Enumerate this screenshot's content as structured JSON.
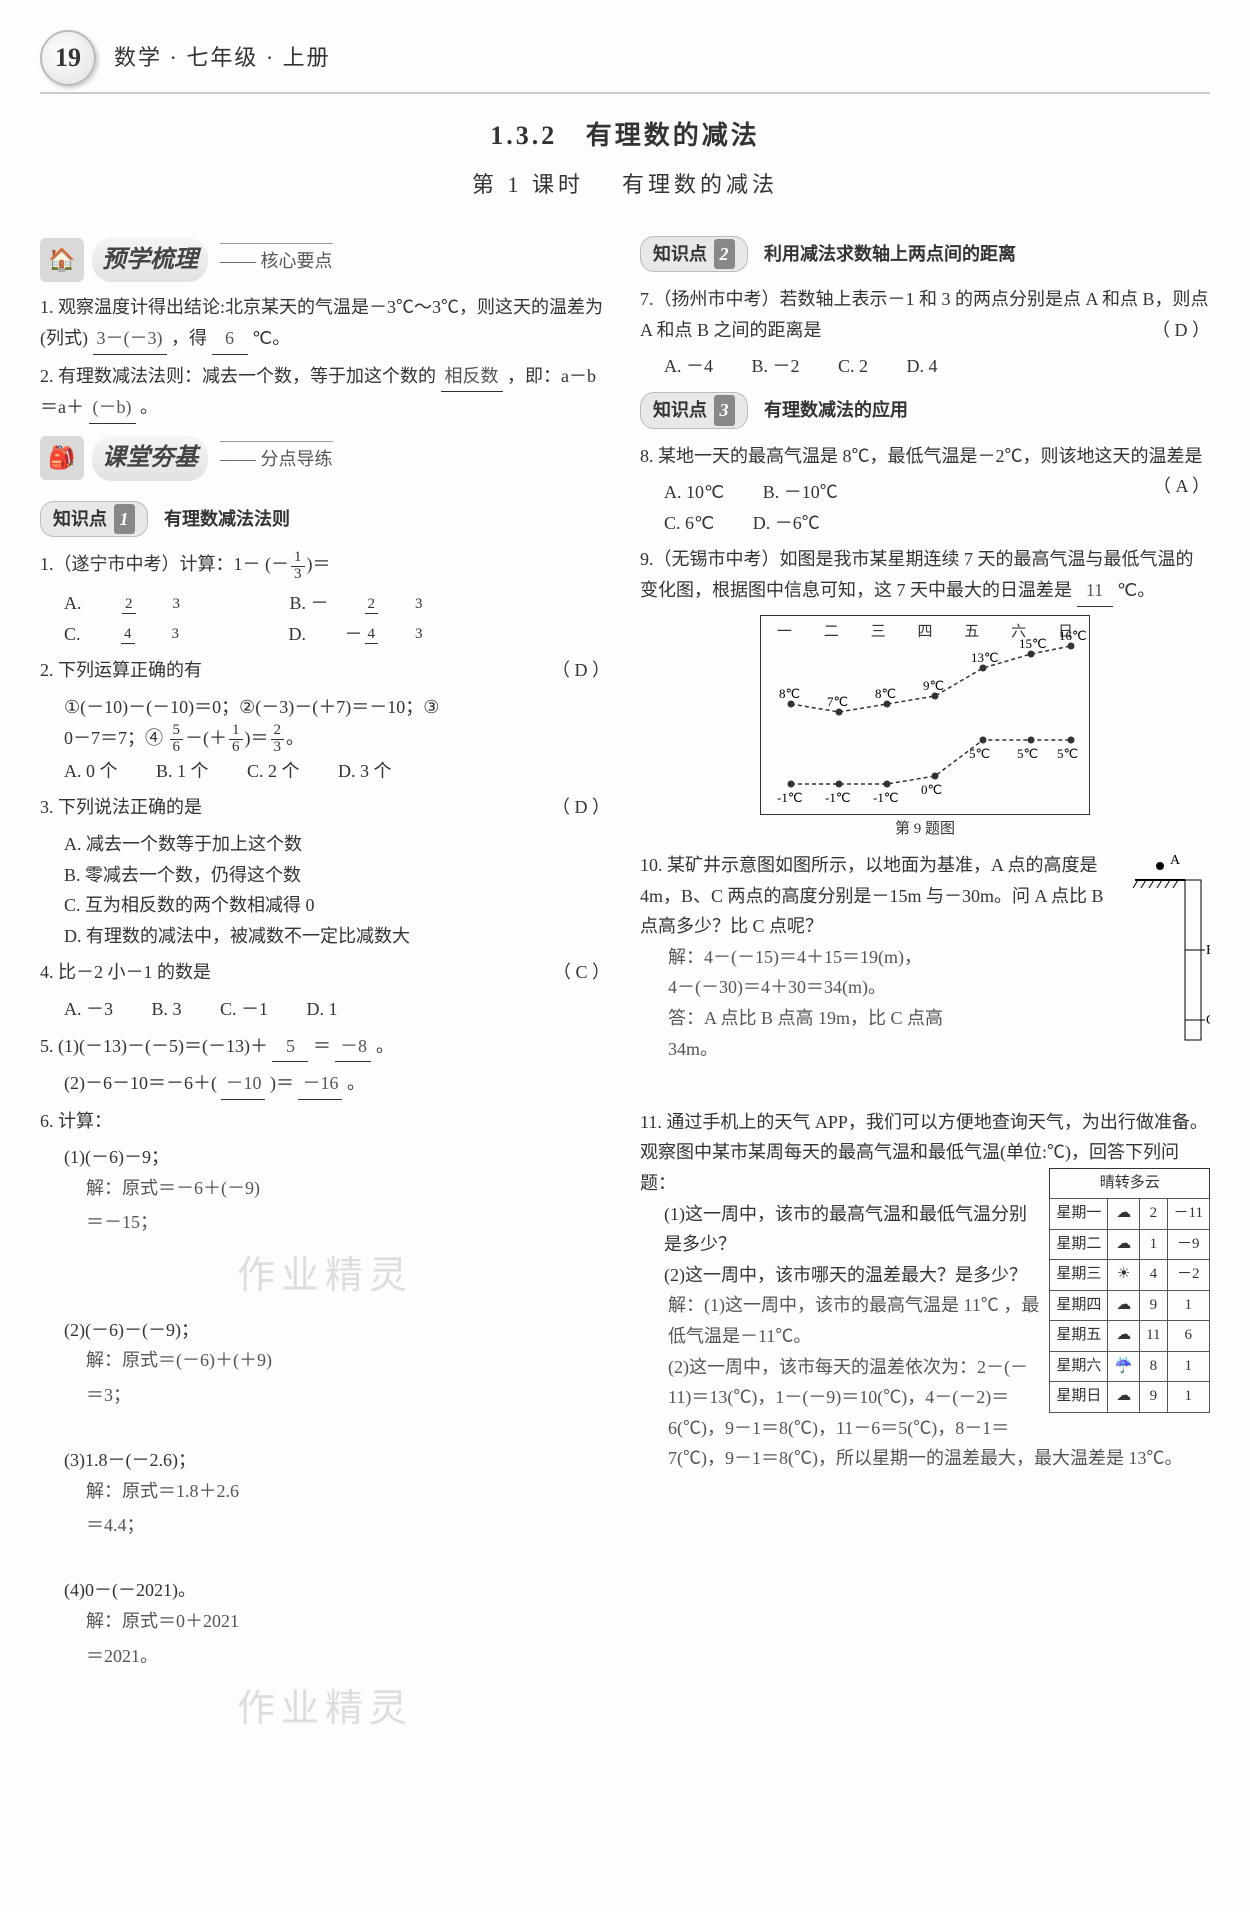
{
  "page_number": "19",
  "header_text": "数学 · 七年级 · 上册",
  "section_number": "1.3.2",
  "section_title": "有理数的减法",
  "lesson_label": "第 1 课时",
  "lesson_title": "有理数的减法",
  "band_preview": {
    "title": "预学梳理",
    "sub": "核心要点"
  },
  "band_class": {
    "title": "课堂夯基",
    "sub": "分点导练"
  },
  "kp1": {
    "label": "知识点",
    "num": "1",
    "title": "有理数减法法则"
  },
  "kp2": {
    "label": "知识点",
    "num": "2",
    "title": "利用减法求数轴上两点间的距离"
  },
  "kp3": {
    "label": "知识点",
    "num": "3",
    "title": "有理数减法的应用"
  },
  "pre1": {
    "text_a": "1. 观察温度计得出结论:北京某天的气温是－3℃～3℃，则这天的温差为(列式)",
    "blank1": "3－(－3)",
    "text_b": "，得",
    "blank2": "6",
    "text_c": "℃。"
  },
  "pre2": {
    "text_a": "2. 有理数减法法则：减去一个数，等于加这个数的",
    "blank1": "相反数",
    "text_b": "，即：a－b＝a＋",
    "blank2": "(－b)",
    "text_c": "。"
  },
  "q1": {
    "stem": "1.（遂宁市中考）计算：1－",
    "ans": "D",
    "A": "A.",
    "B": "B. －",
    "C": "C.",
    "D": "D."
  },
  "q2": {
    "stem": "2. 下列运算正确的有",
    "ans": "D",
    "lines": "①(－10)－(－10)＝0；②(－3)－(＋7)＝－10；③",
    "line2a": "0－7＝7；④",
    "A": "A. 0 个",
    "B": "B. 1 个",
    "C": "C. 2 个",
    "D": "D. 3 个"
  },
  "q3": {
    "stem": "3. 下列说法正确的是",
    "ans": "D",
    "A": "A. 减去一个数等于加上这个数",
    "B": "B. 零减去一个数，仍得这个数",
    "C": "C. 互为相反数的两个数相减得 0",
    "D": "D. 有理数的减法中，被减数不一定比减数大"
  },
  "q4": {
    "stem": "4. 比－2 小－1 的数是",
    "ans": "C",
    "A": "A. －3",
    "B": "B. 3",
    "C": "C. －1",
    "D": "D. 1"
  },
  "q5": {
    "l1a": "5. (1)(－13)－(－5)＝(－13)＋",
    "b1": "5",
    "l1b": "＝",
    "b2": "－8",
    "l1c": "。",
    "l2a": "(2)－6－10＝－6＋(",
    "b3": "－10",
    "l2b": ")＝",
    "b4": "－16",
    "l2c": "。"
  },
  "q6": {
    "stem": "6. 计算：",
    "p1": "(1)(－6)－9；",
    "p1s1": "解：原式＝－6＋(－9)",
    "p1s2": "＝－15；",
    "p2": "(2)(－6)－(－9)；",
    "p2s1": "解：原式＝(－6)＋(＋9)",
    "p2s2": "＝3；",
    "p3": "(3)1.8－(－2.6)；",
    "p3s1": "解：原式＝1.8＋2.6",
    "p3s2": "＝4.4；",
    "p4": "(4)0－(－2021)。",
    "p4s1": "解：原式＝0＋2021",
    "p4s2": "＝2021。"
  },
  "q7": {
    "stem": "7.（扬州市中考）若数轴上表示－1 和 3 的两点分别是点 A 和点 B，则点 A 和点 B 之间的距离是",
    "ans": "D",
    "A": "A. －4",
    "B": "B. －2",
    "C": "C. 2",
    "D": "D. 4"
  },
  "q8": {
    "stem": "8. 某地一天的最高气温是 8℃，最低气温是－2℃，则该地这天的温差是",
    "ans": "A",
    "A": "A. 10℃",
    "B": "B. －10℃",
    "C": "C. 6℃",
    "D": "D. －6℃"
  },
  "q9": {
    "stem_a": "9.（无锡市中考）如图是我市某星期连续 7 天的最高气温与最低气温的变化图，根据图中信息可知，这 7 天中最大的日温差是",
    "blank": "11",
    "stem_b": "℃。",
    "days": [
      "一",
      "二",
      "三",
      "四",
      "五",
      "六",
      "日"
    ],
    "high": [
      "8℃",
      "7℃",
      "8℃",
      "9℃",
      "13℃",
      "15℃",
      "16℃"
    ],
    "low": [
      "-1℃",
      "-1℃",
      "-1℃",
      "0℃",
      "5℃",
      "5℃",
      "5℃"
    ],
    "caption": "第 9 题图",
    "high_y": [
      88,
      96,
      88,
      80,
      52,
      38,
      30
    ],
    "low_y": [
      168,
      168,
      168,
      160,
      124,
      124,
      124
    ],
    "x_pts": [
      30,
      78,
      126,
      174,
      222,
      270,
      310
    ]
  },
  "q10": {
    "stem": "10. 某矿井示意图如图所示，以地面为基准，A 点的高度是 4m，B、C 两点的高度分别是－15m 与－30m。问 A 点比 B 点高多少？比 C 点呢？",
    "s1": "解：4－(－15)＝4＋15＝19(m)，",
    "s2": "4－(－30)＝4＋30＝34(m)。",
    "s3": "答：A 点比 B 点高 19m，比 C 点高",
    "s4": "34m。",
    "labels": {
      "A": "A",
      "B": "B",
      "C": "C"
    }
  },
  "q11": {
    "stem": "11. 通过手机上的天气 APP，我们可以方便地查询天气，为出行做准备。观察图中某市某周每天的最高气温和最低气温(单位:℃)，回答下列问题：",
    "p1": "(1)这一周中，该市的最高气温和最低气温分别是多少？",
    "p2": "(2)这一周中，该市哪天的温差最大？是多少？",
    "s1": "解：(1)这一周中，该市的最高气温是 11℃ ，最低气温是－11℃。",
    "s2": "(2)这一周中，该市每天的温差依次为：2－(－11)＝13(℃)，1－(－9)＝10(℃)，4－(－2)＝6(℃)，9－1＝8(℃)，11－6＝5(℃)，8－1＝7(℃)，9－1＝8(℃)，所以星期一的温差最大，最大温差是 13℃。",
    "table_caption": "晴转多云",
    "rows": [
      {
        "d": "星期一",
        "i": "☁",
        "h": "2",
        "l": "－11"
      },
      {
        "d": "星期二",
        "i": "☁",
        "h": "1",
        "l": "－9"
      },
      {
        "d": "星期三",
        "i": "☀",
        "h": "4",
        "l": "－2"
      },
      {
        "d": "星期四",
        "i": "☁",
        "h": "9",
        "l": "1"
      },
      {
        "d": "星期五",
        "i": "☁",
        "h": "11",
        "l": "6"
      },
      {
        "d": "星期六",
        "i": "☔",
        "h": "8",
        "l": "1"
      },
      {
        "d": "星期日",
        "i": "☁",
        "h": "9",
        "l": "1"
      }
    ]
  },
  "watermark": "作业精灵"
}
